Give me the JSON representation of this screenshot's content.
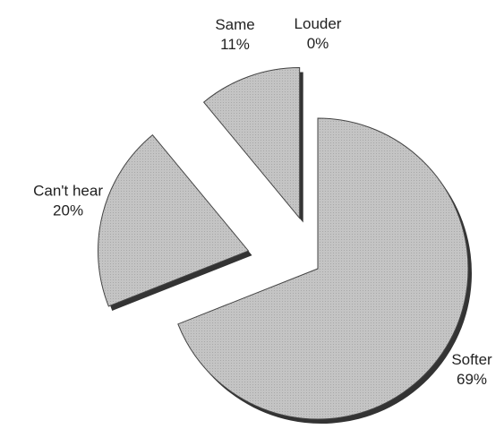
{
  "chart_data": {
    "type": "pie",
    "categories": [
      "Softer",
      "Can't hear",
      "Same",
      "Louder"
    ],
    "values": [
      69,
      20,
      11,
      0
    ],
    "value_labels": [
      "69%",
      "20%",
      "11%",
      "0%"
    ],
    "color": "#c4c4c4"
  }
}
